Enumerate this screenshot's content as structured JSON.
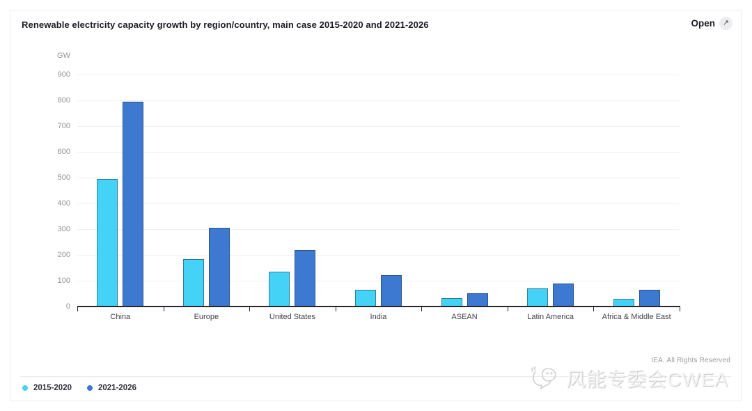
{
  "card": {
    "title": "Renewable electricity capacity growth by region/country, main case 2015-2020 and 2021-2026",
    "open_label": "Open",
    "footer_rights": "IEA. All Rights Reserved",
    "watermark": "风能专委会CWEA"
  },
  "colors": {
    "series1": "#45d2f7",
    "series2": "#3d78d1",
    "axis": "#26262e",
    "grid": "#f2eff3",
    "tick_label": "#8f8f9a",
    "category_label": "#41414c"
  },
  "chart_data": {
    "type": "bar",
    "title": "Renewable electricity capacity growth by region/country, main case 2015-2020 and 2021-2026",
    "unit": "GW",
    "ylabel": "GW",
    "xlabel": "",
    "ylim": [
      0,
      900
    ],
    "ytick_step": 100,
    "grid": true,
    "legend_position": "bottom-left",
    "categories": [
      "China",
      "Europe",
      "United States",
      "India",
      "ASEAN",
      "Latin America",
      "Africa & Middle East"
    ],
    "series": [
      {
        "name": "2015-2020",
        "color": "#45d2f7",
        "values": [
          495,
          185,
          135,
          66,
          32,
          70,
          30
        ]
      },
      {
        "name": "2021-2026",
        "color": "#3d78d1",
        "values": [
          795,
          305,
          220,
          122,
          52,
          88,
          65
        ]
      }
    ]
  }
}
